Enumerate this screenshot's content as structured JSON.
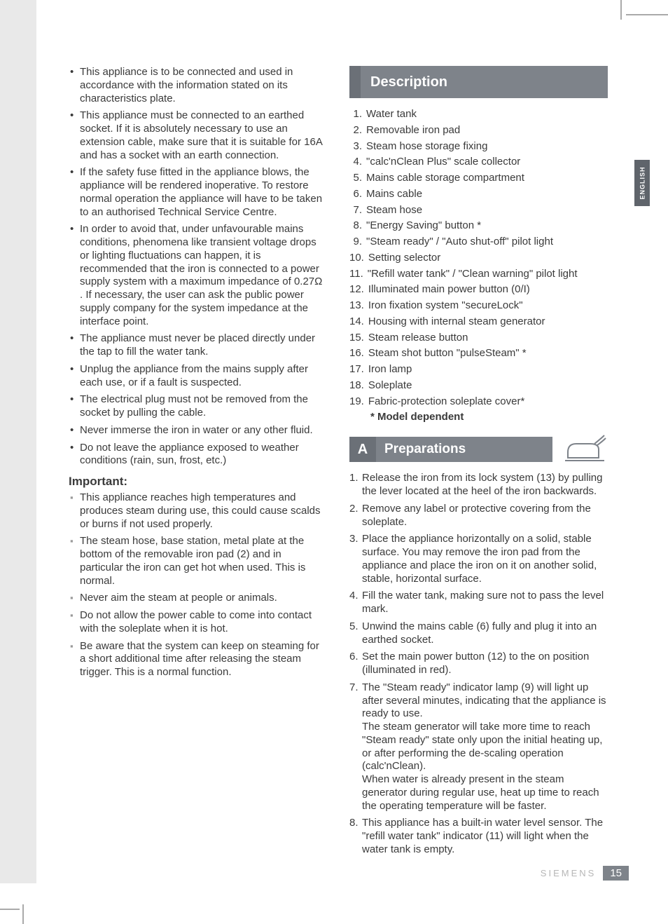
{
  "colors": {
    "text": "#3a3a3a",
    "bar_bg": "#7e838a",
    "bar_tab": "#6b7077",
    "lang_tab_bg": "#5f646b",
    "brand_gray": "#b7b7b7",
    "shade": "#e9e9e9",
    "square_bullet": "#9a9a9a",
    "white": "#ffffff"
  },
  "left": {
    "bullets": [
      "This appliance is to be connected and used in accordance with the information stated on its characteristics plate.",
      "This appliance must be connected to an earthed socket. If it is absolutely necessary to use an extension cable, make sure that it is suitable for 16A and has a socket with an earth connection.",
      "If the safety fuse fitted in the appliance blows, the appliance will be rendered inoperative. To restore normal operation the appliance will have to be taken to an authorised Technical Service Centre.",
      "In order to avoid that, under unfavourable mains conditions, phenomena like transient voltage drops or lighting fluctuations can happen, it is recommended that the iron is connected to a power supply system with a maximum impedance of 0.27Ω . If necessary, the user can ask the public power supply company for the system impedance at the interface point.",
      "The appliance must never be placed directly under the tap to fill the water tank.",
      "Unplug the appliance from the mains supply after each use, or if a fault is suspected.",
      "The electrical plug must not be removed from the socket by pulling the cable.",
      "Never immerse the iron in water or any other fluid.",
      "Do not leave the appliance exposed to weather conditions (rain, sun, frost, etc.)"
    ],
    "important_heading": "Important:",
    "important": [
      "This appliance reaches high temperatures and produces steam during use, this could cause scalds or burns if not used properly.",
      "The steam hose, base station, metal plate at the bottom of the removable iron pad (2) and in particular the iron can get hot when used. This is normal.",
      "Never aim the steam at people or animals.",
      "Do not allow the power cable to come into contact with the soleplate when it is hot.",
      "Be aware that the system can keep on steaming for a short additional time after releasing the steam trigger. This is a normal function."
    ]
  },
  "right": {
    "description_title": "Description",
    "description_items": [
      "Water tank",
      "Removable iron pad",
      "Steam hose storage fixing",
      "\"calc'nClean Plus\" scale collector",
      "Mains cable storage compartment",
      "Mains cable",
      "Steam hose",
      "\"Energy Saving\" button *",
      "\"Steam ready\" / \"Auto shut-off\" pilot light",
      "Setting selector",
      "\"Refill water tank\" / \"Clean warning\" pilot light",
      "Illuminated main power button (0/I)",
      "Iron fixation system \"secureLock\"",
      "Housing with internal steam generator",
      "Steam release button",
      "Steam shot button \"pulseSteam\" *",
      "Iron lamp",
      "Soleplate",
      "Fabric-protection soleplate cover*"
    ],
    "model_dependent": "* Model dependent",
    "prep_letter": "A",
    "prep_title": "Preparations",
    "prep_items": [
      "Release the iron from its lock system (13) by pulling the lever located at the heel of the iron backwards.",
      "Remove any label or protective covering from the soleplate.",
      "Place the appliance horizontally on a solid, stable surface. You may remove the iron pad from the appliance and place the iron on it on another solid, stable, horizontal surface.",
      "Fill the water tank, making sure not to pass the level mark.",
      "Unwind the mains cable (6) fully and plug it into an earthed socket.",
      "Set the main power button (12) to the on position (illuminated in red).",
      "The \"Steam ready\" indicator lamp (9) will light up after several minutes, indicating that the appliance is ready to use.\nThe steam generator will take more time to reach \"Steam ready\" state only upon the initial heating up, or after performing the de-scaling operation (calc'nClean).\nWhen water is already present in the steam generator during regular use, heat up time to reach the operating temperature will be faster.",
      "This appliance has a built-in water level sensor. The \"refill water tank\" indicator (11) will light when the water tank is empty."
    ]
  },
  "lang_tab": "ENGLISH",
  "footer": {
    "brand": "SIEMENS",
    "page": "15"
  }
}
